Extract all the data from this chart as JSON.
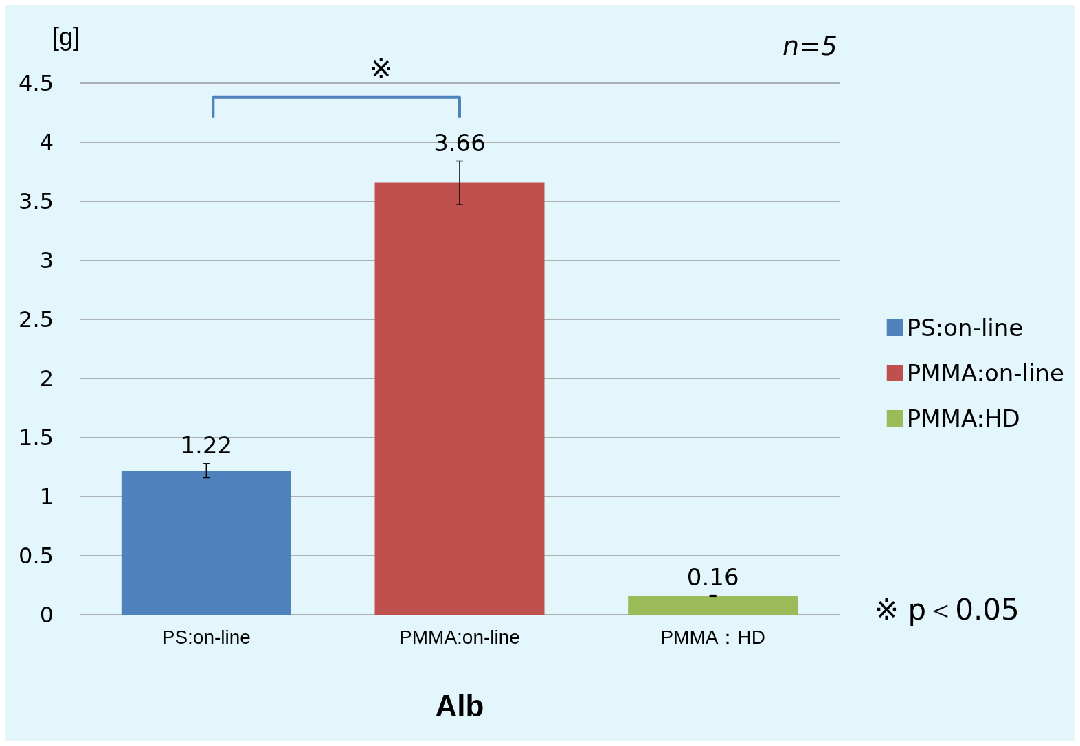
{
  "chart_data": {
    "type": "bar",
    "xlabel": "Alb",
    "ylabel": "[g]",
    "categories": [
      "PS:on-line",
      "PMMA:on-line",
      "PMMA：HD"
    ],
    "series": [
      {
        "name": "PS:on-line",
        "color": "#4f81bd",
        "values": [
          1.22,
          null,
          null
        ],
        "errors": [
          [
            1.16,
            1.28
          ],
          null,
          null
        ]
      },
      {
        "name": "PMMA:on-line",
        "color": "#c0504d",
        "values": [
          null,
          3.66,
          null
        ],
        "errors": [
          null,
          [
            3.47,
            3.84
          ],
          null
        ]
      },
      {
        "name": "PMMA:HD",
        "color": "#9bbb59",
        "values": [
          null,
          null,
          0.16
        ],
        "errors": [
          null,
          null,
          [
            0.155,
            0.165
          ]
        ]
      }
    ],
    "stacked": true,
    "data_labels": true,
    "ylim": [
      0,
      4.5
    ],
    "yticks": [
      0,
      0.5,
      1,
      1.5,
      2,
      2.5,
      3,
      3.5,
      4,
      4.5
    ],
    "grid": "y",
    "legend": "right",
    "annotations": [
      "n=5",
      "※",
      "※ p＜0.05"
    ]
  }
}
